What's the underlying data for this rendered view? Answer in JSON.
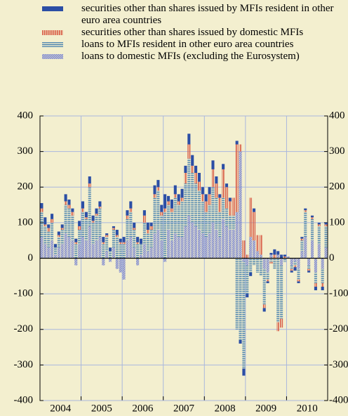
{
  "chart_data": {
    "type": "stacked_bar",
    "categories": [
      null,
      null,
      null,
      null,
      null,
      null,
      null,
      null,
      null,
      null,
      null,
      null,
      null,
      null,
      null,
      null,
      null,
      null,
      null,
      null,
      null,
      null,
      null,
      null,
      null,
      null,
      null,
      null,
      null,
      null,
      null,
      null,
      null,
      null,
      null,
      null,
      null,
      null,
      null,
      null,
      null,
      null,
      null,
      null,
      null,
      null,
      null,
      null,
      null,
      null,
      null,
      null,
      null,
      null,
      null,
      null,
      null,
      null,
      null,
      null,
      null,
      null,
      null,
      null,
      null,
      null,
      null,
      null,
      null,
      null,
      null,
      null,
      null,
      null,
      null,
      null,
      null,
      null,
      null,
      null,
      null,
      null,
      null,
      null
    ],
    "year_labels": [
      "2004",
      "2005",
      "2006",
      "2007",
      "2008",
      "2009",
      "2010"
    ],
    "series": [
      {
        "name": "securities other than shares issued by MFIs resident in other euro area countries",
        "color": "#2b4ea5",
        "pattern": "solid",
        "values": [
          15,
          20,
          10,
          15,
          10,
          10,
          10,
          20,
          15,
          10,
          10,
          15,
          20,
          15,
          20,
          15,
          15,
          15,
          15,
          5,
          10,
          5,
          15,
          10,
          15,
          15,
          20,
          15,
          15,
          15,
          15,
          20,
          10,
          25,
          20,
          20,
          40,
          15,
          25,
          25,
          20,
          25,
          20,
          30,
          30,
          20,
          25,
          20,
          20,
          20,
          25,
          20,
          10,
          15,
          10,
          10,
          0,
          10,
          -10,
          -20,
          -10,
          -10,
          10,
          0,
          0,
          -10,
          -5,
          5,
          15,
          10,
          10,
          5,
          0,
          -5,
          -10,
          -5,
          5,
          5,
          -5,
          5,
          -10,
          5,
          -10,
          5
        ]
      },
      {
        "name": "securities other than shares issued by domestic MFIs",
        "color": "#d9604a",
        "pattern": "vertical",
        "values": [
          10,
          5,
          10,
          10,
          0,
          5,
          5,
          10,
          10,
          10,
          5,
          10,
          10,
          5,
          10,
          5,
          5,
          5,
          5,
          5,
          0,
          5,
          5,
          5,
          5,
          10,
          10,
          5,
          5,
          0,
          20,
          10,
          10,
          10,
          10,
          10,
          10,
          10,
          10,
          10,
          10,
          10,
          30,
          40,
          20,
          30,
          25,
          20,
          30,
          30,
          50,
          40,
          40,
          80,
          60,
          40,
          50,
          190,
          20,
          50,
          10,
          110,
          80,
          45,
          55,
          -10,
          -5,
          -5,
          10,
          -25,
          -25,
          5,
          0,
          -5,
          -5,
          -5,
          5,
          5,
          -5,
          5,
          -10,
          5,
          -10,
          5
        ]
      },
      {
        "name": "loans to MFIs resident in other euro area countries",
        "color": "#4f86b0",
        "pattern": "horizontal",
        "values": [
          70,
          50,
          45,
          50,
          20,
          30,
          40,
          80,
          80,
          70,
          40,
          40,
          70,
          60,
          110,
          60,
          70,
          80,
          40,
          40,
          20,
          50,
          60,
          40,
          40,
          60,
          70,
          50,
          40,
          30,
          60,
          50,
          50,
          100,
          110,
          70,
          130,
          70,
          80,
          100,
          90,
          100,
          120,
          160,
          140,
          120,
          110,
          90,
          70,
          80,
          100,
          90,
          70,
          60,
          50,
          40,
          40,
          -200,
          -230,
          -300,
          -80,
          -40,
          -20,
          -40,
          -50,
          -100,
          -20,
          -10,
          -30,
          -180,
          -150,
          -10,
          0,
          -10,
          -10,
          -30,
          30,
          70,
          -10,
          60,
          -30,
          50,
          -40,
          60
        ]
      },
      {
        "name": "loans to domestic MFIs (excluding the Eurosystem)",
        "color": "#6a78d0",
        "pattern": "diagonal",
        "values": [
          60,
          40,
          30,
          50,
          10,
          30,
          40,
          70,
          60,
          50,
          -20,
          40,
          60,
          50,
          90,
          40,
          50,
          60,
          -20,
          20,
          -10,
          30,
          -30,
          -40,
          -60,
          50,
          60,
          30,
          -20,
          10,
          40,
          20,
          30,
          70,
          80,
          50,
          -10,
          80,
          50,
          70,
          60,
          60,
          90,
          120,
          100,
          90,
          80,
          70,
          60,
          70,
          100,
          80,
          60,
          110,
          90,
          80,
          80,
          130,
          300,
          -10,
          -20,
          60,
          50,
          20,
          10,
          -30,
          -40,
          10,
          0,
          10,
          -20,
          0,
          5,
          -20,
          -10,
          -30,
          20,
          60,
          -20,
          50,
          -40,
          40,
          -30,
          30
        ]
      }
    ],
    "ylim": [
      -400,
      400
    ],
    "yticks": [
      -400,
      -300,
      -200,
      -100,
      0,
      100,
      200,
      300,
      400
    ],
    "grid": true
  }
}
